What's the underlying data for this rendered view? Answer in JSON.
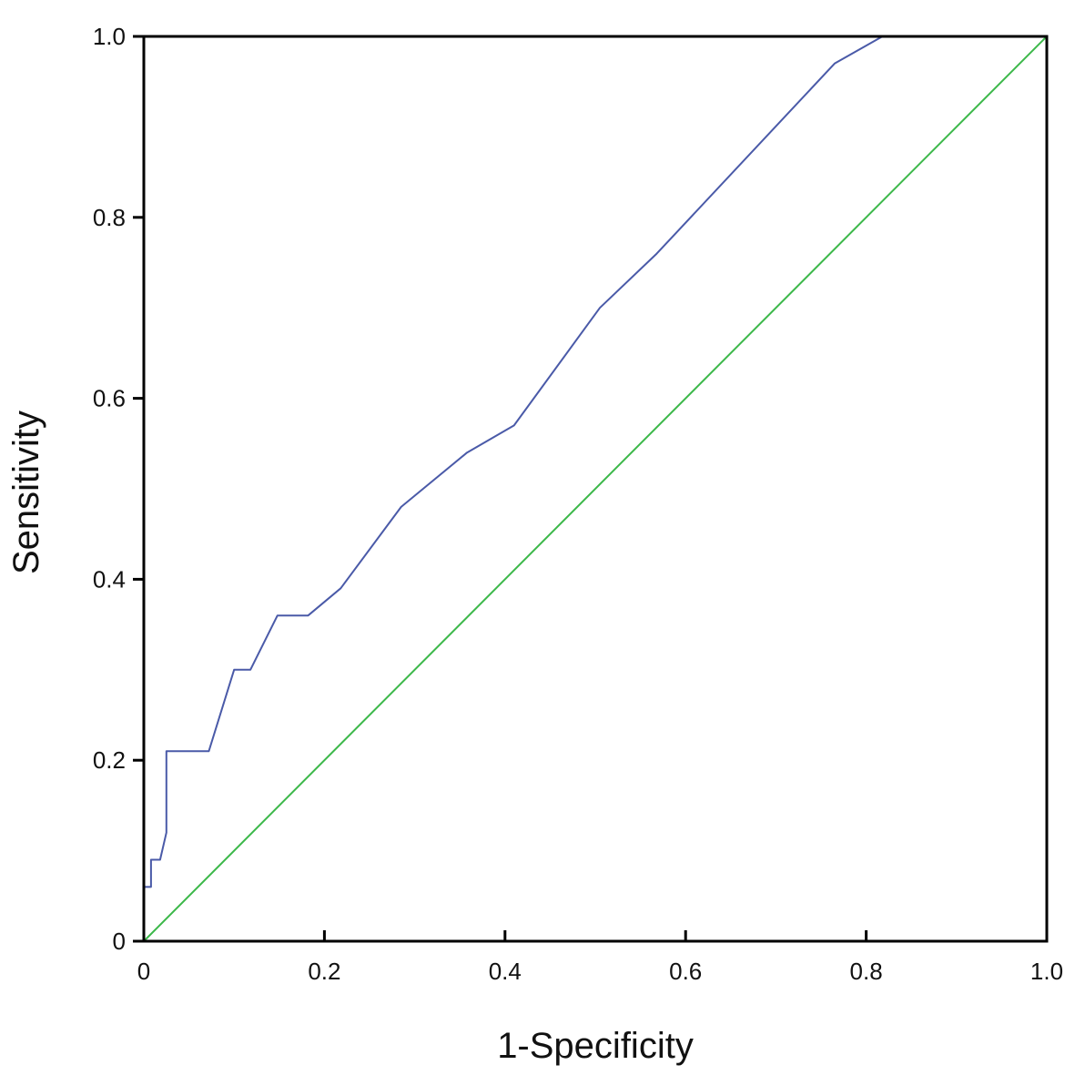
{
  "chart_data": {
    "type": "line",
    "title": "",
    "xlabel": "1-Specificity",
    "ylabel": "Sensitivity",
    "xlim": [
      0,
      1
    ],
    "ylim": [
      0,
      1
    ],
    "grid": false,
    "x_ticks": [
      {
        "value": 0,
        "label": "0"
      },
      {
        "value": 0.2,
        "label": "0.2"
      },
      {
        "value": 0.4,
        "label": "0.4"
      },
      {
        "value": 0.6,
        "label": "0.6"
      },
      {
        "value": 0.8,
        "label": "0.8"
      },
      {
        "value": 1.0,
        "label": "1.0"
      }
    ],
    "y_ticks": [
      {
        "value": 0,
        "label": "0"
      },
      {
        "value": 0.2,
        "label": "0.2"
      },
      {
        "value": 0.4,
        "label": "0.4"
      },
      {
        "value": 0.6,
        "label": "0.6"
      },
      {
        "value": 0.8,
        "label": "0.8"
      },
      {
        "value": 1.0,
        "label": "1.0"
      }
    ],
    "series": [
      {
        "color": "#4a5aa8",
        "points": [
          [
            0,
            0
          ],
          [
            0,
            0.06
          ],
          [
            0.008,
            0.06
          ],
          [
            0.008,
            0.09
          ],
          [
            0.018,
            0.09
          ],
          [
            0.025,
            0.12
          ],
          [
            0.025,
            0.21
          ],
          [
            0.072,
            0.21
          ],
          [
            0.1,
            0.3
          ],
          [
            0.118,
            0.3
          ],
          [
            0.148,
            0.36
          ],
          [
            0.182,
            0.36
          ],
          [
            0.218,
            0.39
          ],
          [
            0.285,
            0.48
          ],
          [
            0.358,
            0.54
          ],
          [
            0.41,
            0.57
          ],
          [
            0.505,
            0.7
          ],
          [
            0.568,
            0.76
          ],
          [
            0.765,
            0.97
          ],
          [
            0.818,
            1.0
          ],
          [
            1.0,
            1.0
          ]
        ]
      },
      {
        "color": "#3cb84a",
        "points": [
          [
            0,
            0
          ],
          [
            1,
            1
          ]
        ]
      }
    ]
  }
}
